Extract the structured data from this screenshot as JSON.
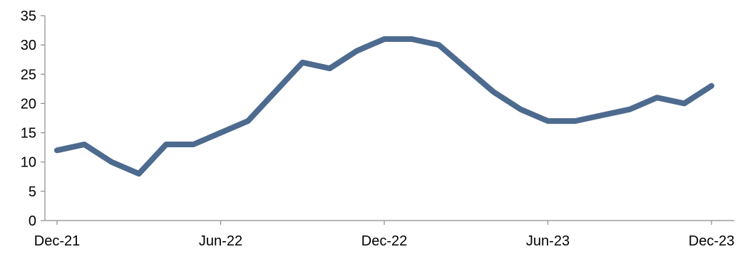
{
  "chart_data": {
    "type": "line",
    "title": "",
    "xlabel": "",
    "ylabel": "",
    "ylim": [
      0,
      35
    ],
    "yticks": [
      0,
      5,
      10,
      15,
      20,
      25,
      30,
      35
    ],
    "x_ticks": [
      "Dec-21",
      "Jun-22",
      "Dec-22",
      "Jun-23",
      "Dec-23"
    ],
    "grid": false,
    "legend": "none",
    "line_color": "#4d6a8f",
    "x": [
      "2021-12",
      "2022-01",
      "2022-02",
      "2022-03",
      "2022-04",
      "2022-05",
      "2022-06",
      "2022-07",
      "2022-08",
      "2022-09",
      "2022-10",
      "2022-11",
      "2022-12",
      "2023-01",
      "2023-02",
      "2023-03",
      "2023-04",
      "2023-05",
      "2023-06",
      "2023-07",
      "2023-08",
      "2023-09",
      "2023-10",
      "2023-11",
      "2023-12"
    ],
    "series": [
      {
        "values": [
          12,
          13,
          10,
          8,
          13,
          13,
          15,
          17,
          22,
          27,
          26,
          29,
          31,
          31,
          30,
          26,
          22,
          19,
          17,
          17,
          18,
          19,
          21,
          20,
          23
        ]
      }
    ]
  }
}
